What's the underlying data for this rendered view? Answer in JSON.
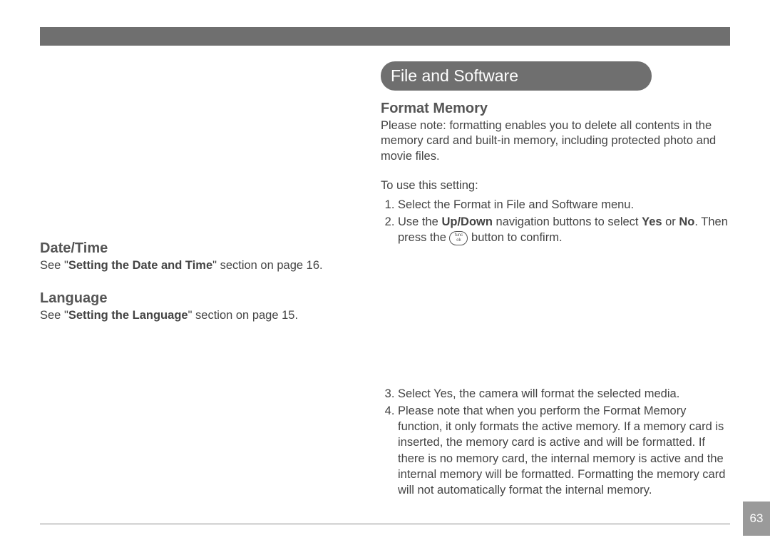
{
  "page_number": "63",
  "section_tab": "File and Software",
  "left": {
    "datetime_heading": "Date/Time",
    "datetime_pre": "See \"",
    "datetime_bold": "Setting the Date and Time",
    "datetime_post": "\" section on page 16.",
    "language_heading": "Language",
    "language_pre": "See \"",
    "language_bold": "Setting the Language",
    "language_post": "\" section on page 15."
  },
  "right": {
    "format_heading": "Format Memory",
    "format_note": "Please note: formatting enables you to delete all contents in the memory card and built-in memory, including protected photo and movie files.",
    "to_use": "To use this setting:",
    "step1": "Select the Format in File and Software menu.",
    "step2_pre": "Use the ",
    "step2_updown": "Up/Down",
    "step2_mid1": " navigation buttons to select ",
    "step2_yes": "Yes",
    "step2_or": " or ",
    "step2_no": "No",
    "step2_dot": ". Then press the ",
    "step2_after_btn": " button to confirm.",
    "func_top": "func",
    "func_bot": "ok",
    "step3": "Select Yes, the camera will format the selected media.",
    "step4": "Please note that when you perform the Format Memory function, it only formats the active memory.  If a memory card is inserted, the memory card is active and will be formatted.  If there is no memory card, the internal memory is active and the internal memory will be formatted. Formatting the memory card will not automatically format the internal memory."
  }
}
